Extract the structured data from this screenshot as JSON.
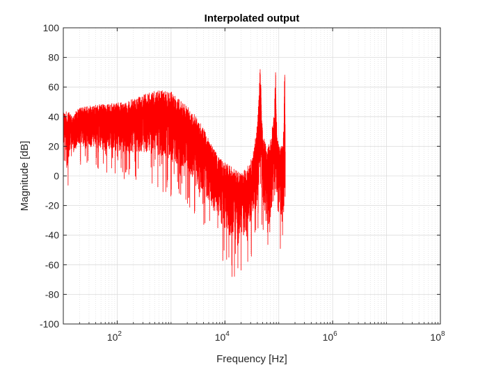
{
  "chart_data": {
    "type": "line",
    "title": "Interpolated output",
    "xlabel": "Frequency [Hz]",
    "ylabel": "Magnitude [dB]",
    "xscale": "log",
    "xlim": [
      10,
      100000000
    ],
    "ylim": [
      -100,
      100
    ],
    "grid": true,
    "minor_grid": true,
    "x_ticks": [
      {
        "base": "10",
        "exp": "2",
        "value": 100
      },
      {
        "base": "10",
        "exp": "4",
        "value": 10000
      },
      {
        "base": "10",
        "exp": "6",
        "value": 1000000
      },
      {
        "base": "10",
        "exp": "8",
        "value": 100000000
      }
    ],
    "y_ticks": [
      "-100",
      "-80",
      "-60",
      "-40",
      "-20",
      "0",
      "20",
      "40",
      "60",
      "80",
      "100"
    ],
    "series": [
      {
        "name": "Interpolated output",
        "color": "#ff0000",
        "upper_envelope": {
          "x": [
            10,
            15,
            20,
            40,
            80,
            150,
            300,
            600,
            1000,
            1500,
            2000,
            3000,
            4000,
            5000,
            7000,
            10000,
            15000,
            20000,
            25000,
            30000,
            35000,
            40000,
            43000,
            45000,
            48000,
            50000,
            60000,
            70000,
            80000,
            85000,
            88000,
            90000,
            95000,
            100000,
            110000,
            120000,
            125000,
            128000,
            130000,
            132000
          ],
          "y": [
            44,
            42,
            46,
            48,
            49,
            50,
            55,
            58,
            57,
            52,
            47,
            40,
            32,
            25,
            15,
            10,
            5,
            2,
            5,
            10,
            20,
            35,
            55,
            82,
            45,
            30,
            18,
            25,
            40,
            60,
            82,
            50,
            25,
            20,
            20,
            22,
            40,
            72,
            74,
            20
          ]
        },
        "lower_envelope": {
          "x": [
            10,
            12,
            15,
            20,
            30,
            50,
            80,
            150,
            300,
            600,
            1000,
            2000,
            3000,
            5000,
            7000,
            10000,
            15000,
            20000,
            30000,
            40000,
            45000,
            50000,
            60000,
            70000,
            80000,
            90000,
            95000,
            100000,
            110000,
            115000,
            120000,
            125000,
            132000
          ],
          "y": [
            10,
            -10,
            0,
            5,
            5,
            0,
            0,
            -5,
            -5,
            -10,
            -15,
            -20,
            -30,
            -40,
            -50,
            -60,
            -72,
            -65,
            -60,
            -50,
            -30,
            -45,
            -60,
            -65,
            -40,
            -50,
            -55,
            -50,
            -55,
            -72,
            -55,
            -60,
            -40
          ]
        }
      }
    ]
  }
}
